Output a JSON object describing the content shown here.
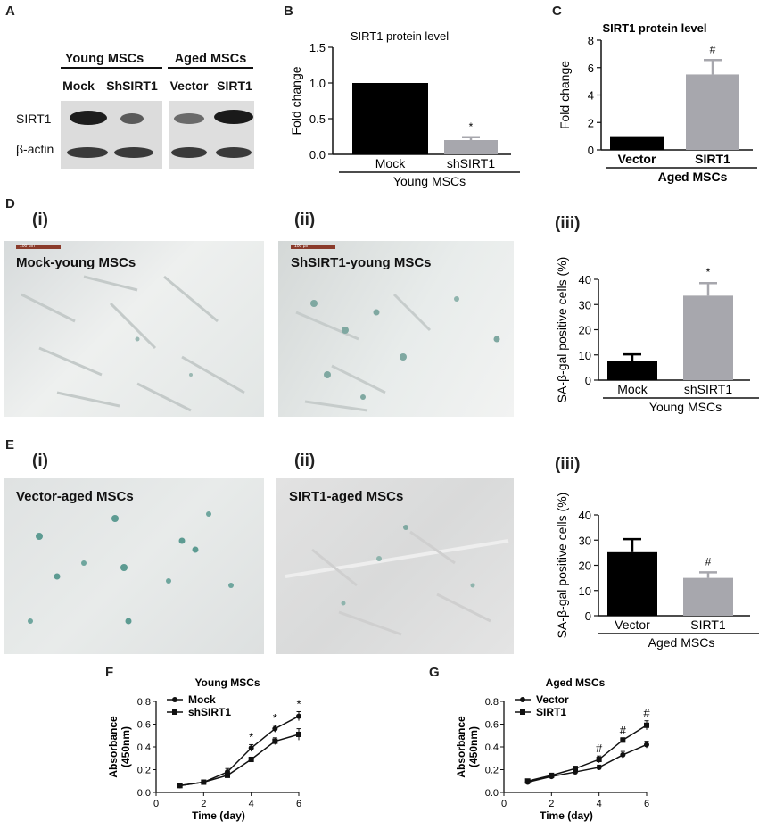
{
  "panels": {
    "A": "A",
    "B": "B",
    "C": "C",
    "D": "D",
    "E": "E",
    "F": "F",
    "G": "G"
  },
  "subpanels": {
    "i": "(i)",
    "ii": "(ii)",
    "iii": "(iii)"
  },
  "western_blot": {
    "groups": [
      "Young MSCs",
      "Aged MSCs"
    ],
    "lanes": [
      "Mock",
      "ShSIRT1",
      "Vector",
      "SIRT1"
    ],
    "rows": [
      "SIRT1",
      "β-actin"
    ]
  },
  "micrographs": {
    "d_i": {
      "caption": "Mock-young MSCs",
      "scale": "100 μm"
    },
    "d_ii": {
      "caption": "ShSIRT1-young MSCs",
      "scale": "100 μm"
    },
    "e_i": {
      "caption": "Vector-aged MSCs"
    },
    "e_ii": {
      "caption": "SIRT1-aged MSCs"
    }
  },
  "chart_data": [
    {
      "id": "B",
      "type": "bar",
      "title": "SIRT1 protein level",
      "ylabel": "Fold change",
      "ylim": [
        0,
        1.5
      ],
      "yticks": [
        "0.0",
        "0.5",
        "1.0",
        "1.5"
      ],
      "categories": [
        "Mock",
        "shSIRT1"
      ],
      "group_label": "Young MSCs",
      "values": [
        1.0,
        0.2
      ],
      "errors": [
        0.0,
        0.04
      ],
      "annotations": [
        "",
        "*"
      ],
      "colors": [
        "#000000",
        "#a7a7ad"
      ]
    },
    {
      "id": "C",
      "type": "bar",
      "title": "SIRT1 protein level",
      "ylabel": "Fold change",
      "ylim": [
        0,
        8
      ],
      "yticks": [
        "0",
        "2",
        "4",
        "6",
        "8"
      ],
      "categories": [
        "Vector",
        "SIRT1"
      ],
      "group_label": "Aged MSCs",
      "values": [
        1.0,
        5.5
      ],
      "errors": [
        0.0,
        1.05
      ],
      "annotations": [
        "",
        "#"
      ],
      "colors": [
        "#000000",
        "#a7a7ad"
      ]
    },
    {
      "id": "D-iii",
      "type": "bar",
      "title": "",
      "ylabel": "SA-β-gal positive cells (%)",
      "ylim": [
        0,
        40
      ],
      "yticks": [
        "0",
        "10",
        "20",
        "30",
        "40"
      ],
      "categories": [
        "Mock",
        "shSIRT1"
      ],
      "group_label": "Young MSCs",
      "values": [
        7.5,
        33.5
      ],
      "errors": [
        2.7,
        5.0
      ],
      "annotations": [
        "",
        "*"
      ],
      "colors": [
        "#000000",
        "#a7a7ad"
      ]
    },
    {
      "id": "E-iii",
      "type": "bar",
      "title": "",
      "ylabel": "SA-β-gal positive cells (%)",
      "ylim": [
        0,
        40
      ],
      "yticks": [
        "0",
        "10",
        "20",
        "30",
        "40"
      ],
      "categories": [
        "Vector",
        "SIRT1"
      ],
      "group_label": "Aged MSCs",
      "values": [
        25.2,
        15.0
      ],
      "errors": [
        5.2,
        2.2
      ],
      "annotations": [
        "",
        "#"
      ],
      "colors": [
        "#000000",
        "#a7a7ad"
      ]
    },
    {
      "id": "F",
      "type": "line",
      "title": "Young MSCs",
      "xlabel": "Time (day)",
      "ylabel": "Absorbance (450nm)",
      "xlim": [
        0,
        6
      ],
      "ylim": [
        0,
        0.8
      ],
      "xticks": [
        "0",
        "2",
        "4",
        "6"
      ],
      "yticks": [
        "0.0",
        "0.2",
        "0.4",
        "0.6",
        "0.8"
      ],
      "x": [
        1,
        2,
        3,
        4,
        5,
        6
      ],
      "series": [
        {
          "name": "Mock",
          "marker": "circle",
          "values": [
            0.06,
            0.09,
            0.18,
            0.39,
            0.56,
            0.67
          ],
          "errors": [
            0.01,
            0.01,
            0.03,
            0.03,
            0.03,
            0.04
          ]
        },
        {
          "name": "shSIRT1",
          "marker": "square",
          "values": [
            0.06,
            0.09,
            0.15,
            0.29,
            0.45,
            0.51
          ],
          "errors": [
            0.01,
            0.01,
            0.02,
            0.02,
            0.03,
            0.05
          ]
        }
      ],
      "point_annotations": [
        {
          "x": 4,
          "label": "*"
        },
        {
          "x": 5,
          "label": "*"
        },
        {
          "x": 6,
          "label": "*"
        }
      ]
    },
    {
      "id": "G",
      "type": "line",
      "title": "Aged MSCs",
      "xlabel": "Time (day)",
      "ylabel": "Absorbance (450nm)",
      "xlim": [
        0,
        6
      ],
      "ylim": [
        0,
        0.8
      ],
      "xticks": [
        "0",
        "2",
        "4",
        "6"
      ],
      "yticks": [
        "0.0",
        "0.2",
        "0.4",
        "0.6",
        "0.8"
      ],
      "x": [
        1,
        2,
        3,
        4,
        5,
        6
      ],
      "series": [
        {
          "name": "Vector",
          "marker": "circle",
          "values": [
            0.09,
            0.14,
            0.18,
            0.22,
            0.33,
            0.42
          ],
          "errors": [
            0.01,
            0.01,
            0.02,
            0.02,
            0.03,
            0.03
          ]
        },
        {
          "name": "SIRT1",
          "marker": "square",
          "values": [
            0.1,
            0.15,
            0.21,
            0.29,
            0.46,
            0.59
          ],
          "errors": [
            0.01,
            0.01,
            0.02,
            0.03,
            0.02,
            0.04
          ]
        }
      ],
      "point_annotations": [
        {
          "x": 4,
          "label": "#"
        },
        {
          "x": 5,
          "label": "#"
        },
        {
          "x": 6,
          "label": "#"
        }
      ]
    }
  ]
}
